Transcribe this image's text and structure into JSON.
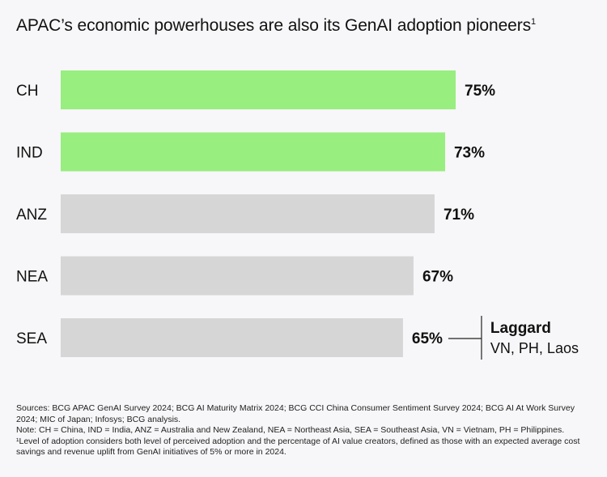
{
  "title": "APAC’s economic powerhouses are also its GenAI adoption pioneers",
  "title_footnote_mark": "1",
  "chart_data": {
    "type": "bar",
    "orientation": "horizontal",
    "categories": [
      "CH",
      "IND",
      "ANZ",
      "NEA",
      "SEA"
    ],
    "values": [
      75,
      73,
      71,
      67,
      65
    ],
    "value_labels": [
      "75%",
      "73%",
      "71%",
      "67%",
      "65%"
    ],
    "highlight": [
      true,
      true,
      false,
      false,
      false
    ],
    "colors": {
      "highlight": "#98ee7f",
      "default": "#d6d6d6"
    },
    "title": "APAC’s economic powerhouses are also its GenAI adoption pioneers",
    "xlabel": "",
    "ylabel": "",
    "grid": false,
    "annotation": {
      "target": "SEA",
      "title": "Laggard",
      "text": "VN, PH, Laos"
    }
  },
  "notes": {
    "sources": "Sources: BCG APAC GenAI Survey 2024; BCG AI Maturity Matrix 2024; BCG CCI China Consumer Sentiment Survey 2024; BCG AI At Work Survey 2024; MIC of Japan; Infosys; BCG analysis.",
    "note": "Note: CH = China, IND = India, ANZ = Australia and New Zealand, NEA = Northeast Asia, SEA = Southeast Asia, VN = Vietnam, PH = Philippines.",
    "footnote": "¹Level of adoption considers both level of perceived adoption and the percentage of AI value creators, defined as those with an expected average cost savings and revenue uplift from GenAI initiatives of 5% or more in 2024."
  }
}
